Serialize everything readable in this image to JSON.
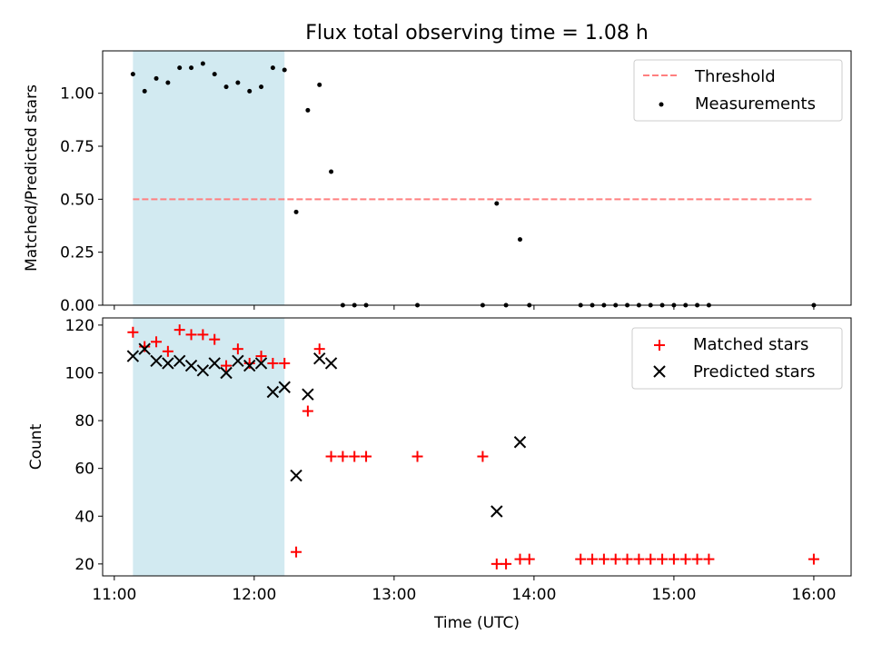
{
  "title": "Flux total observing time = 1.08 h",
  "colors": {
    "threshold": "#ff7f7f",
    "measurements": "#000000",
    "matched": "#ff0000",
    "predicted": "#000000",
    "span": "#add8e6"
  },
  "chart_data": [
    {
      "type": "scatter",
      "ylabel": "Matched/Predicted stars",
      "ylim": [
        0,
        1.2
      ],
      "yticks": [
        0.0,
        0.25,
        0.5,
        0.75,
        1.0
      ],
      "ytick_labels": [
        "0.00",
        "0.25",
        "0.50",
        "0.75",
        "1.00"
      ],
      "legend_placement": "top-right",
      "grid": false,
      "shaded_span": [
        "11:08",
        "12:13"
      ],
      "threshold": {
        "name": "Threshold",
        "style": "dashed",
        "value": 0.5,
        "x_range": [
          "11:08",
          "16:00"
        ]
      },
      "measurements": {
        "name": "Measurements",
        "points": [
          [
            "11:08",
            1.09
          ],
          [
            "11:13",
            1.01
          ],
          [
            "11:18",
            1.07
          ],
          [
            "11:23",
            1.05
          ],
          [
            "11:28",
            1.12
          ],
          [
            "11:33",
            1.12
          ],
          [
            "11:38",
            1.14
          ],
          [
            "11:43",
            1.09
          ],
          [
            "11:48",
            1.03
          ],
          [
            "11:53",
            1.05
          ],
          [
            "11:58",
            1.01
          ],
          [
            "12:03",
            1.03
          ],
          [
            "12:08",
            1.12
          ],
          [
            "12:13",
            1.11
          ],
          [
            "12:18",
            0.44
          ],
          [
            "12:23",
            0.92
          ],
          [
            "12:28",
            1.04
          ],
          [
            "12:33",
            0.63
          ],
          [
            "12:38",
            0.0
          ],
          [
            "12:43",
            0.0
          ],
          [
            "12:48",
            0.0
          ],
          [
            "13:10",
            0.0
          ],
          [
            "13:38",
            0.0
          ],
          [
            "13:44",
            0.48
          ],
          [
            "13:48",
            0.0
          ],
          [
            "13:54",
            0.31
          ],
          [
            "13:58",
            0.0
          ],
          [
            "14:20",
            0.0
          ],
          [
            "14:25",
            0.0
          ],
          [
            "14:30",
            0.0
          ],
          [
            "14:35",
            0.0
          ],
          [
            "14:40",
            0.0
          ],
          [
            "14:45",
            0.0
          ],
          [
            "14:50",
            0.0
          ],
          [
            "14:55",
            0.0
          ],
          [
            "15:00",
            0.0
          ],
          [
            "15:05",
            0.0
          ],
          [
            "15:10",
            0.0
          ],
          [
            "15:15",
            0.0
          ],
          [
            "16:00",
            0.0
          ]
        ]
      }
    },
    {
      "type": "scatter",
      "xlabel": "Time (UTC)",
      "ylabel": "Count",
      "ylim": [
        15,
        123
      ],
      "yticks": [
        20,
        40,
        60,
        80,
        100,
        120
      ],
      "ytick_labels": [
        "20",
        "40",
        "60",
        "80",
        "100",
        "120"
      ],
      "xlim": [
        "10:55",
        "16:16"
      ],
      "xticks": [
        "11:00",
        "12:00",
        "13:00",
        "14:00",
        "15:00",
        "16:00"
      ],
      "xtick_labels": [
        "11:00",
        "12:00",
        "13:00",
        "14:00",
        "15:00",
        "16:00"
      ],
      "legend_placement": "top-right",
      "grid": false,
      "shaded_span": [
        "11:08",
        "12:13"
      ],
      "series": [
        {
          "name": "Matched stars",
          "marker": "+",
          "points": [
            [
              "11:08",
              117
            ],
            [
              "11:13",
              111
            ],
            [
              "11:18",
              113
            ],
            [
              "11:23",
              109
            ],
            [
              "11:28",
              118
            ],
            [
              "11:33",
              116
            ],
            [
              "11:38",
              116
            ],
            [
              "11:43",
              114
            ],
            [
              "11:48",
              103
            ],
            [
              "11:53",
              110
            ],
            [
              "11:58",
              104
            ],
            [
              "12:03",
              107
            ],
            [
              "12:08",
              104
            ],
            [
              "12:13",
              104
            ],
            [
              "12:18",
              25
            ],
            [
              "12:23",
              84
            ],
            [
              "12:28",
              110
            ],
            [
              "12:33",
              65
            ],
            [
              "12:38",
              65
            ],
            [
              "12:43",
              65
            ],
            [
              "12:48",
              65
            ],
            [
              "13:10",
              65
            ],
            [
              "13:38",
              65
            ],
            [
              "13:44",
              20
            ],
            [
              "13:48",
              20
            ],
            [
              "13:54",
              22
            ],
            [
              "13:58",
              22
            ],
            [
              "14:20",
              22
            ],
            [
              "14:25",
              22
            ],
            [
              "14:30",
              22
            ],
            [
              "14:35",
              22
            ],
            [
              "14:40",
              22
            ],
            [
              "14:45",
              22
            ],
            [
              "14:50",
              22
            ],
            [
              "14:55",
              22
            ],
            [
              "15:00",
              22
            ],
            [
              "15:05",
              22
            ],
            [
              "15:10",
              22
            ],
            [
              "15:15",
              22
            ],
            [
              "16:00",
              22
            ]
          ]
        },
        {
          "name": "Predicted stars",
          "marker": "x",
          "points": [
            [
              "11:08",
              107
            ],
            [
              "11:13",
              110
            ],
            [
              "11:18",
              105
            ],
            [
              "11:23",
              104
            ],
            [
              "11:28",
              105
            ],
            [
              "11:33",
              103
            ],
            [
              "11:38",
              101
            ],
            [
              "11:43",
              104
            ],
            [
              "11:48",
              100
            ],
            [
              "11:53",
              105
            ],
            [
              "11:58",
              103
            ],
            [
              "12:03",
              104
            ],
            [
              "12:08",
              92
            ],
            [
              "12:13",
              94
            ],
            [
              "12:18",
              57
            ],
            [
              "12:23",
              91
            ],
            [
              "12:28",
              106
            ],
            [
              "12:33",
              104
            ],
            [
              "13:44",
              42
            ],
            [
              "13:54",
              71
            ]
          ]
        }
      ]
    }
  ]
}
